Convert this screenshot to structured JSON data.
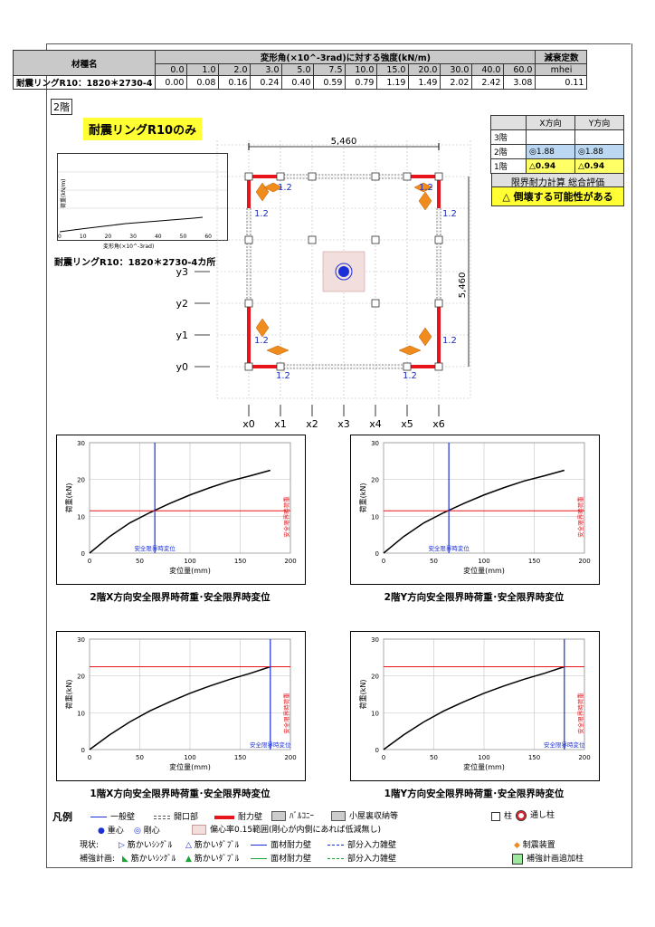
{
  "material_table": {
    "material_header": "材種名",
    "strength_header": "変形角(×10^-3rad)に対する強度(kN/m)",
    "decay_header": "減衰定数",
    "decay_unit": "mhei",
    "angles": [
      "0.0",
      "1.0",
      "2.0",
      "3.0",
      "5.0",
      "7.5",
      "10.0",
      "15.0",
      "20.0",
      "30.0",
      "40.0",
      "60.0"
    ],
    "row": {
      "name": "耐震リングR10：1820＊2730-4",
      "values": [
        "0.00",
        "0.08",
        "0.16",
        "0.24",
        "0.40",
        "0.59",
        "0.79",
        "1.19",
        "1.49",
        "2.02",
        "2.42",
        "3.08"
      ],
      "decay": "0.11"
    }
  },
  "floor_label": "2階",
  "plan_title": "耐震リングR10のみ",
  "mini_chart": {
    "caption": "耐震リングR10：1820＊2730-4カ所",
    "ylabel": "荷重(kN/m)",
    "xlabel": "変形角(×10^-3rad)",
    "xticks": [
      "0",
      "10",
      "20",
      "30",
      "40",
      "50",
      "60"
    ]
  },
  "result_table": {
    "header": [
      "",
      "X方向",
      "Y方向"
    ],
    "rows": [
      [
        "3階",
        "",
        ""
      ],
      [
        "2階",
        "◎1.88",
        "◎1.88"
      ],
      [
        "1階",
        "△0.94",
        "△0.94"
      ]
    ]
  },
  "evaluation": {
    "title": "限界耐力計算 総合評価",
    "result": "△ 倒壊する可能性がある"
  },
  "plan": {
    "dim_x": "5,460",
    "dim_y": "5,460",
    "x_axes": [
      "x0",
      "x1",
      "x2",
      "x3",
      "x4",
      "x5",
      "x6"
    ],
    "y_axes": [
      "y3",
      "y2",
      "y1",
      "y0"
    ],
    "wall_label": "1.2",
    "colors": {
      "bearing_wall": "#e8141b",
      "damper": "#f08c1e",
      "center": "#1a2fd6",
      "text_blue": "#1a2fc0"
    }
  },
  "charts": [
    {
      "caption": "2階X方向安全限界時荷重･安全限界時変位",
      "ylabel": "荷重(kN)",
      "xlabel": "変位量(mm)",
      "xlim": [
        0,
        200
      ],
      "ylim": [
        0,
        30
      ],
      "xticks": [
        "0",
        "50",
        "100",
        "150",
        "200"
      ],
      "yticks": [
        "0",
        "10",
        "20",
        "30"
      ],
      "curve": [
        [
          0,
          0
        ],
        [
          20,
          4.5
        ],
        [
          40,
          8.2
        ],
        [
          60,
          11
        ],
        [
          80,
          13.5
        ],
        [
          100,
          15.8
        ],
        [
          120,
          17.8
        ],
        [
          140,
          19.6
        ],
        [
          160,
          21
        ],
        [
          180,
          22.5
        ]
      ],
      "limit_disp": 65,
      "limit_load": 11.5,
      "vlabel": "安全限界時変位",
      "rlabel": "安全限界時荷重"
    },
    {
      "caption": "2階Y方向安全限界時荷重･安全限界時変位",
      "ylabel": "荷重(kN)",
      "xlabel": "変位量(mm)",
      "xlim": [
        0,
        200
      ],
      "ylim": [
        0,
        30
      ],
      "xticks": [
        "0",
        "50",
        "100",
        "150",
        "200"
      ],
      "yticks": [
        "0",
        "10",
        "20",
        "30"
      ],
      "curve": [
        [
          0,
          0
        ],
        [
          20,
          4.5
        ],
        [
          40,
          8.2
        ],
        [
          60,
          11
        ],
        [
          80,
          13.5
        ],
        [
          100,
          15.8
        ],
        [
          120,
          17.8
        ],
        [
          140,
          19.6
        ],
        [
          160,
          21
        ],
        [
          180,
          22.5
        ]
      ],
      "limit_disp": 65,
      "limit_load": 11.5,
      "vlabel": "安全限界時変位",
      "rlabel": "安全限界時荷重"
    },
    {
      "caption": "1階X方向安全限界時荷重･安全限界時変位",
      "ylabel": "荷重(kN)",
      "xlabel": "変位量(mm)",
      "xlim": [
        0,
        200
      ],
      "ylim": [
        0,
        30
      ],
      "xticks": [
        "0",
        "50",
        "100",
        "150",
        "200"
      ],
      "yticks": [
        "0",
        "10",
        "20",
        "30"
      ],
      "curve": [
        [
          0,
          0
        ],
        [
          20,
          4
        ],
        [
          40,
          7.5
        ],
        [
          60,
          10.5
        ],
        [
          80,
          13
        ],
        [
          100,
          15.3
        ],
        [
          120,
          17.3
        ],
        [
          140,
          19.1
        ],
        [
          160,
          20.7
        ],
        [
          180,
          22.5
        ]
      ],
      "limit_disp": 180,
      "limit_load": 22.5,
      "vlabel": "安全限界時変位",
      "rlabel": "安全限界時荷重"
    },
    {
      "caption": "1階Y方向安全限界時荷重･安全限界時変位",
      "ylabel": "荷重(kN)",
      "xlabel": "変位量(mm)",
      "xlim": [
        0,
        200
      ],
      "ylim": [
        0,
        30
      ],
      "xticks": [
        "0",
        "50",
        "100",
        "150",
        "200"
      ],
      "yticks": [
        "0",
        "10",
        "20",
        "30"
      ],
      "curve": [
        [
          0,
          0
        ],
        [
          20,
          4
        ],
        [
          40,
          7.5
        ],
        [
          60,
          10.5
        ],
        [
          80,
          13
        ],
        [
          100,
          15.3
        ],
        [
          120,
          17.3
        ],
        [
          140,
          19.1
        ],
        [
          160,
          20.7
        ],
        [
          180,
          22.5
        ]
      ],
      "limit_disp": 180,
      "limit_load": 22.5,
      "vlabel": "安全限界時変位",
      "rlabel": "安全限界時荷重"
    }
  ],
  "legend": {
    "title": "凡例",
    "general_wall": "一般壁",
    "opening": "開口部",
    "bearing_wall": "耐力壁",
    "balcony": "ﾊﾞﾙｺﾆｰ",
    "attic": "小屋裏収納等",
    "column": "柱",
    "through_column": "通し柱",
    "center_gravity": "重心",
    "center_rigidity": "剛心",
    "eccentric": "偏心率0.15範囲(剛心が内側にあれば低減無し)",
    "current": "現状:",
    "plan": "補強計画:",
    "brace_single": "筋かいｼﾝｸﾞﾙ",
    "brace_double": "筋かいﾀﾞﾌﾞﾙ",
    "face_wall": "面材耐力壁",
    "partial_wall": "部分入力雑壁",
    "damper": "制震装置",
    "added_column": "補強計画追加柱"
  }
}
